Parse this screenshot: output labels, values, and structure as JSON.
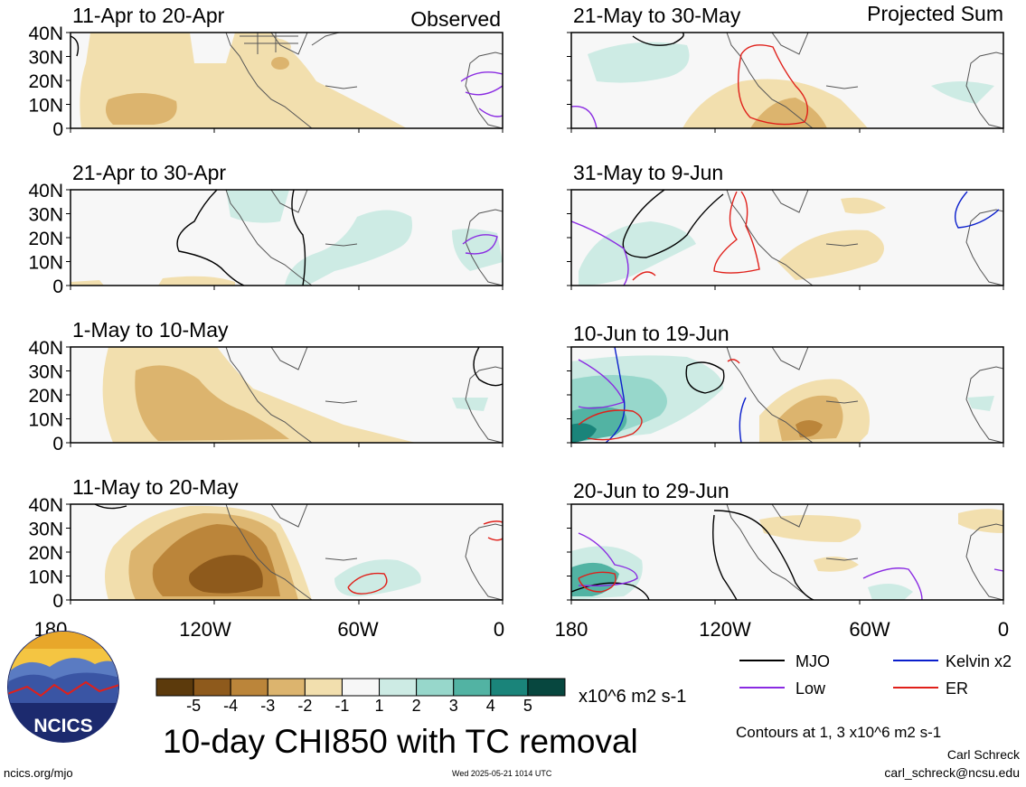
{
  "figure": {
    "title": "10-day CHI850 with TC removal",
    "units": "x10^6 m2 s-1",
    "contour_note": "Contours at 1, 3 x10^6 m2 s-1",
    "author": "Carl Schreck",
    "email": "carl_schreck@ncsu.edu",
    "website": "ncics.org/mjo",
    "timestamp": "Wed 2025-05-21 1014 UTC",
    "logo_text": "NCICS"
  },
  "columns": {
    "left_label": "Observed",
    "right_label": "Projected Sum"
  },
  "axes": {
    "lat_ticks": [
      "40N",
      "30N",
      "20N",
      "10N",
      "0"
    ],
    "left_lon_ticks": [
      "180",
      "120W",
      "60W",
      "0"
    ],
    "right_lon_ticks": [
      "180",
      "120W",
      "60W",
      "0"
    ]
  },
  "panels": [
    {
      "period": "11-Apr to 20-Apr"
    },
    {
      "period": "21-Apr to 30-Apr"
    },
    {
      "period": "1-May to 10-May"
    },
    {
      "period": "11-May to 20-May"
    },
    {
      "period": "21-May to 30-May"
    },
    {
      "period": "31-May to 9-Jun"
    },
    {
      "period": "10-Jun to 19-Jun"
    },
    {
      "period": "20-Jun to 29-Jun"
    }
  ],
  "colorbar": {
    "labels": [
      "-5",
      "-4",
      "-3",
      "-2",
      "-1",
      "1",
      "2",
      "3",
      "4",
      "5"
    ],
    "colors": [
      "#5c3a0c",
      "#8e5a1c",
      "#bb853a",
      "#dcb46e",
      "#f2dfae",
      "#f7f7f7",
      "#cdebe4",
      "#97d7cb",
      "#52b3a3",
      "#1a847a",
      "#07473f"
    ]
  },
  "legend": [
    {
      "name": "MJO",
      "color": "#000000"
    },
    {
      "name": "Kelvin x2",
      "color": "#0a1ecc"
    },
    {
      "name": "Low",
      "color": "#8a2be2"
    },
    {
      "name": "ER",
      "color": "#e0201a"
    }
  ],
  "colors": {
    "brown1": "#f2dfae",
    "brown2": "#dcb46e",
    "brown3": "#bb853a",
    "brown4": "#8e5a1c",
    "green1": "#cdebe4",
    "green2": "#97d7cb",
    "green3": "#52b3a3",
    "green4": "#1a847a",
    "land": "#555555",
    "bg": "#f7f7f7"
  }
}
